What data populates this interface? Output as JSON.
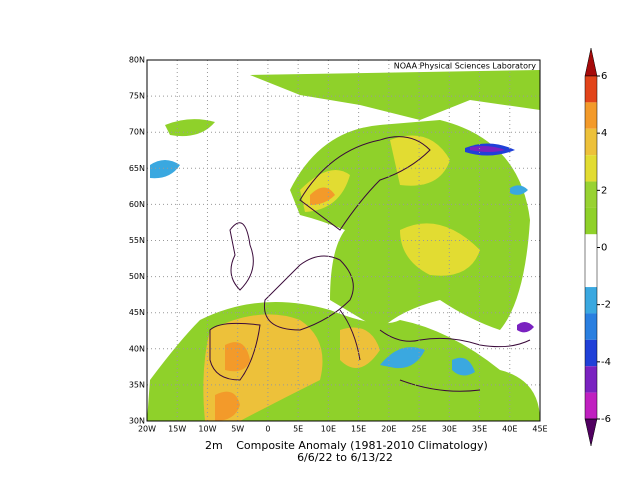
{
  "map": {
    "credit": "NOAA Physical Sciences Laboratory",
    "lat_labels": [
      "80N",
      "75N",
      "70N",
      "65N",
      "60N",
      "55N",
      "50N",
      "45N",
      "40N",
      "35N",
      "30N"
    ],
    "lon_labels": [
      "20W",
      "15W",
      "10W",
      "5W",
      "0",
      "5E",
      "10E",
      "15E",
      "20E",
      "25E",
      "30E",
      "35E",
      "40E",
      "45E"
    ],
    "caption": {
      "variable": "2m",
      "title": "Composite Anomaly (1981-2010 Climatology)",
      "dates": "6/6/22  to 6/13/22"
    }
  },
  "colorbar": {
    "ticks": [
      6,
      4,
      2,
      0,
      -2,
      -4,
      -6
    ],
    "colors": [
      "#a50a0a",
      "#e2441a",
      "#f39a2a",
      "#edc13a",
      "#e2dc32",
      "#98d232",
      "#8fd12a",
      "#ffffff",
      "#ffffff",
      "#3aa8e0",
      "#2a7fe0",
      "#2040d8",
      "#7a22c0",
      "#c020c0",
      "#500060"
    ]
  }
}
